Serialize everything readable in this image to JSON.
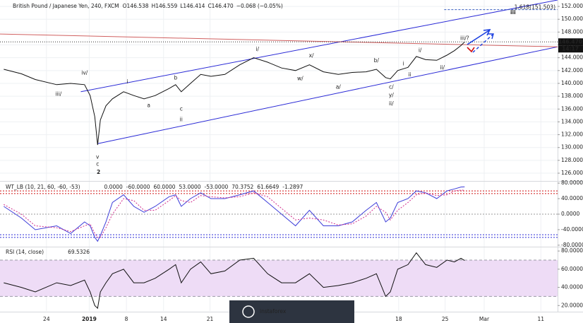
{
  "watermark": "instaforex",
  "chart_data": [
    {
      "type": "line",
      "title": "British Pound / Japanese Yen, 240, FXCM",
      "header": [
        "O146.538",
        "H146.559",
        "L146.414",
        "C146.470",
        "−0.068 (−0.05%)"
      ],
      "x": [
        0.4,
        2.3,
        3.8,
        6.1,
        7.6,
        9.1,
        9.7,
        10.2,
        10.5,
        10.8,
        11.4,
        12.1,
        13.3,
        14.4,
        15.5,
        16.7,
        18.2,
        18.9,
        19.5,
        20.5,
        21.6,
        22.7,
        24.2,
        25.8,
        27.3,
        28.8,
        30.3,
        31.8,
        33.3,
        34.8,
        36.4,
        37.9,
        39.4,
        40.5,
        41.5,
        42.0,
        42.8,
        43.9,
        44.8,
        45.8,
        47.0,
        48.1,
        48.9,
        49.6,
        50.0
      ],
      "values": [
        142.2,
        141.5,
        140.6,
        139.8,
        140.0,
        139.8,
        138.1,
        134.8,
        130.4,
        134.3,
        136.5,
        137.6,
        138.7,
        138.1,
        137.6,
        138.1,
        139.2,
        139.8,
        138.7,
        140.0,
        141.4,
        141.1,
        141.4,
        142.9,
        144.0,
        143.3,
        142.4,
        142.0,
        142.9,
        141.8,
        141.4,
        141.7,
        141.8,
        142.2,
        140.9,
        140.7,
        142.0,
        142.5,
        144.2,
        143.7,
        143.6,
        144.4,
        145.1,
        145.9,
        146.47
      ],
      "color": "#111111",
      "xlim": [
        0,
        60
      ],
      "xticks": [
        {
          "value": 5,
          "label": "24"
        },
        {
          "value": 9.6,
          "label": "2019"
        },
        {
          "value": 13.6,
          "label": "8"
        },
        {
          "value": 17.6,
          "label": "14"
        },
        {
          "value": 22.6,
          "label": "21"
        },
        {
          "value": 42.9,
          "label": "18"
        },
        {
          "value": 47.9,
          "label": "25"
        },
        {
          "value": 52.1,
          "label": "Mar"
        },
        {
          "value": 58.2,
          "label": "11"
        }
      ],
      "ylim": [
        124.9,
        153.0
      ],
      "yticks": [
        {
          "value": 126,
          "label": "126.000"
        },
        {
          "value": 128,
          "label": "128.000"
        },
        {
          "value": 130,
          "label": "130.000"
        },
        {
          "value": 132,
          "label": "132.000"
        },
        {
          "value": 134,
          "label": "134.000"
        },
        {
          "value": 136,
          "label": "136.000"
        },
        {
          "value": 138,
          "label": "138.000"
        },
        {
          "value": 140,
          "label": "140.000"
        },
        {
          "value": 142,
          "label": "142.000"
        },
        {
          "value": 144,
          "label": "144.000"
        },
        {
          "value": 146,
          "label": "146.000"
        },
        {
          "value": 148,
          "label": "148.000"
        },
        {
          "value": 150,
          "label": "150.000"
        },
        {
          "value": 152,
          "label": "152.000"
        }
      ],
      "grid": true,
      "trendlines": [
        {
          "x": [
            8.7,
            60
          ],
          "values": [
            138.7,
            153.0
          ],
          "color": "#2a2ad6"
        },
        {
          "x": [
            10.5,
            60
          ],
          "values": [
            130.6,
            145.7
          ],
          "color": "#2a2ad6"
        },
        {
          "x": [
            0,
            60
          ],
          "values": [
            147.7,
            145.7
          ],
          "color": "#d06060"
        }
      ],
      "last_price": {
        "value": 146.47,
        "label": "146.470"
      },
      "last_time": "14:17",
      "fib": {
        "value": 151.503,
        "x_start": 47.8,
        "label": "1.618(151.503)",
        "color": "#3a5fc0"
      },
      "annotations": [
        {
          "text": "iv/",
          "x": 9.1,
          "y": 141.6,
          "color": "#111"
        },
        {
          "text": "iii/",
          "x": 6.3,
          "y": 138.3,
          "color": "#111"
        },
        {
          "text": "i",
          "x": 13.7,
          "y": 140.2,
          "color": "#111"
        },
        {
          "text": "a",
          "x": 16.0,
          "y": 136.5,
          "color": "#111"
        },
        {
          "text": "b",
          "x": 18.9,
          "y": 140.8,
          "color": "#111"
        },
        {
          "text": "c",
          "x": 19.5,
          "y": 136.0,
          "color": "#111"
        },
        {
          "text": "ii",
          "x": 19.5,
          "y": 134.3,
          "color": "#111"
        },
        {
          "text": "v",
          "x": 10.5,
          "y": 128.5,
          "color": "#111"
        },
        {
          "text": "c",
          "x": 10.5,
          "y": 127.4,
          "color": "#111"
        },
        {
          "text": "2",
          "x": 10.6,
          "y": 126.1,
          "color": "#111",
          "bold": true
        },
        {
          "text": "i/",
          "x": 27.7,
          "y": 145.3,
          "color": "#111"
        },
        {
          "text": "x/",
          "x": 33.5,
          "y": 144.3,
          "color": "#111"
        },
        {
          "text": "w/",
          "x": 32.3,
          "y": 140.7,
          "color": "#111"
        },
        {
          "text": "a/",
          "x": 36.4,
          "y": 139.4,
          "color": "#111"
        },
        {
          "text": "b/",
          "x": 40.5,
          "y": 143.5,
          "color": "#111"
        },
        {
          "text": "c/",
          "x": 42.1,
          "y": 139.4,
          "color": "#111"
        },
        {
          "text": "y/",
          "x": 42.1,
          "y": 138.1,
          "color": "#111"
        },
        {
          "text": "ii/",
          "x": 42.1,
          "y": 136.8,
          "color": "#111"
        },
        {
          "text": "i",
          "x": 43.4,
          "y": 143.0,
          "color": "#d01010"
        },
        {
          "text": "ii",
          "x": 44.1,
          "y": 141.3,
          "color": "#d01010"
        },
        {
          "text": "i/",
          "x": 45.2,
          "y": 145.1,
          "color": "#d01010"
        },
        {
          "text": "ii/",
          "x": 47.6,
          "y": 142.4,
          "color": "#d01010"
        },
        {
          "text": "iii/?",
          "x": 50.0,
          "y": 147.0,
          "color": "#d01010"
        },
        {
          "text": "iii",
          "x": 55.2,
          "y": 151.0,
          "color": "#111",
          "bold": true
        }
      ]
    },
    {
      "type": "line",
      "title": "WT_LB (10, 21, 60, -60, -53)",
      "readout": [
        {
          "text": "0.0000",
          "color": "#777"
        },
        {
          "text": "-60.0000",
          "color": "#2a2ad6"
        },
        {
          "text": "60.0000",
          "color": "#d01010"
        },
        {
          "text": "53.0000",
          "color": "#d01010"
        },
        {
          "text": "-53.0000",
          "color": "#2a2ad6"
        },
        {
          "text": "70.3752",
          "color": "#2a2ad6"
        },
        {
          "text": "61.6649",
          "color": "#c0208a"
        },
        {
          "text": "-1.2897",
          "color": "#2a2ad6"
        }
      ],
      "x": [
        0.4,
        2.3,
        3.8,
        6.1,
        7.6,
        9.1,
        9.7,
        10.2,
        10.5,
        10.8,
        11.4,
        12.1,
        13.3,
        14.4,
        15.5,
        16.7,
        18.2,
        18.9,
        19.5,
        20.5,
        21.6,
        22.7,
        24.2,
        25.8,
        27.3,
        28.8,
        30.3,
        31.8,
        33.3,
        34.8,
        36.4,
        37.9,
        39.4,
        40.5,
        41.5,
        42.0,
        42.8,
        43.9,
        44.8,
        45.8,
        47.0,
        48.1,
        48.9,
        49.6,
        50.0
      ],
      "xlim": [
        0,
        60
      ],
      "ylim": [
        -82,
        82
      ],
      "yticks": [
        {
          "value": 80,
          "label": "80.0000"
        },
        {
          "value": 40,
          "label": "40.0000"
        },
        {
          "value": 0,
          "label": "0.0000"
        },
        {
          "value": -40,
          "label": "-40.0000"
        },
        {
          "value": -80,
          "label": "-80.0000"
        }
      ],
      "levels": [
        {
          "value": 60,
          "color": "#d01010"
        },
        {
          "value": 53,
          "color": "#d01010"
        },
        {
          "value": 0,
          "color": "#999999"
        },
        {
          "value": -53,
          "color": "#2a2ad6"
        },
        {
          "value": -60,
          "color": "#2a2ad6"
        }
      ],
      "series": [
        {
          "color": "#3d3dd9",
          "dash": false,
          "values": [
            20,
            -10,
            -40,
            -30,
            -50,
            -20,
            -30,
            -60,
            -70,
            -55,
            -20,
            30,
            50,
            20,
            5,
            20,
            45,
            50,
            20,
            40,
            55,
            40,
            40,
            50,
            60,
            30,
            0,
            -30,
            10,
            -30,
            -30,
            -20,
            10,
            30,
            -20,
            -10,
            30,
            40,
            60,
            55,
            40,
            60,
            65,
            70,
            70.3752
          ]
        },
        {
          "color": "#d02c8c",
          "dash": true,
          "values": [
            25,
            0,
            -30,
            -35,
            -45,
            -30,
            -25,
            -50,
            -60,
            -60,
            -35,
            0,
            40,
            35,
            10,
            10,
            35,
            48,
            35,
            30,
            48,
            45,
            42,
            45,
            55,
            45,
            15,
            -15,
            -10,
            -15,
            -28,
            -25,
            -5,
            20,
            5,
            -15,
            10,
            30,
            50,
            55,
            48,
            50,
            60,
            62,
            61.6649
          ]
        }
      ]
    },
    {
      "type": "line",
      "title": "RSI (14, close)",
      "readout": [
        {
          "text": "69.5326",
          "color": "#111"
        }
      ],
      "x": [
        0.4,
        2.3,
        3.8,
        6.1,
        7.6,
        9.1,
        9.7,
        10.2,
        10.5,
        10.8,
        11.4,
        12.1,
        13.3,
        14.4,
        15.5,
        16.7,
        18.2,
        18.9,
        19.5,
        20.5,
        21.6,
        22.7,
        24.2,
        25.8,
        27.3,
        28.8,
        30.3,
        31.8,
        33.3,
        34.8,
        36.4,
        37.9,
        39.4,
        40.5,
        41.5,
        42.0,
        42.8,
        43.9,
        44.8,
        45.8,
        47.0,
        48.1,
        48.9,
        49.6,
        50.0
      ],
      "values": [
        45,
        40,
        35,
        45,
        42,
        48,
        35,
        20,
        17,
        35,
        45,
        55,
        60,
        45,
        45,
        50,
        60,
        65,
        45,
        60,
        68,
        55,
        58,
        70,
        72,
        55,
        45,
        45,
        55,
        40,
        42,
        45,
        50,
        55,
        30,
        35,
        60,
        65,
        78,
        65,
        62,
        70,
        68,
        72,
        69.5326
      ],
      "color": "#111111",
      "xlim": [
        0,
        60
      ],
      "ylim": [
        14,
        84
      ],
      "yticks": [
        {
          "value": 80,
          "label": "80.0000"
        },
        {
          "value": 60,
          "label": "60.0000"
        },
        {
          "value": 40,
          "label": "40.0000"
        },
        {
          "value": 20,
          "label": "20.0000"
        }
      ],
      "band": [
        30,
        70
      ],
      "band_color": "#eedcf6"
    }
  ]
}
